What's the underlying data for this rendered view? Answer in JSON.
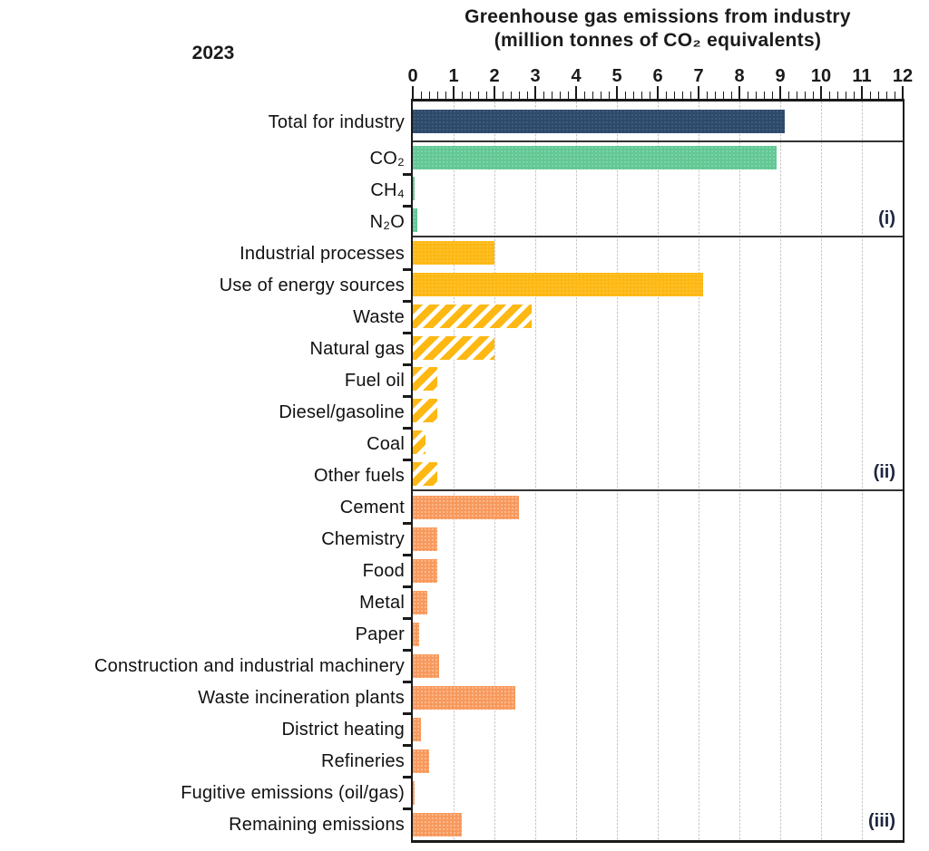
{
  "year_label": "2023",
  "title": {
    "line1": "Greenhouse gas emissions from industry",
    "line2": "(million tonnes of CO₂ equivalents)"
  },
  "chart_data": {
    "type": "bar",
    "orientation": "horizontal",
    "title": "Greenhouse gas emissions from industry (million tonnes of CO₂ equivalents)",
    "xlabel": "million tonnes of CO₂ equivalents",
    "ylabel": "",
    "xlim": [
      0,
      12
    ],
    "axis": {
      "position": "top",
      "major_tick_step": 1,
      "minor_tick_step": 0.2,
      "major_tick_labels": [
        "0",
        "1",
        "2",
        "3",
        "4",
        "5",
        "6",
        "7",
        "8",
        "9",
        "10",
        "11",
        "12"
      ]
    },
    "grid": "vertical dotted at each integer 1-11",
    "legend_position": "none",
    "sections": [
      {
        "id": "total",
        "marker": "",
        "rows": [
          {
            "label": "Total for industry",
            "value": 9.1,
            "style": "navy-solid"
          }
        ]
      },
      {
        "id": "by-gas",
        "marker": "(i)",
        "rows": [
          {
            "label": "CO₂",
            "value": 8.9,
            "style": "green-solid"
          },
          {
            "label": "CH₄",
            "value": 0.05,
            "style": "green-solid"
          },
          {
            "label": "N₂O",
            "value": 0.1,
            "style": "green-solid"
          }
        ]
      },
      {
        "id": "by-source",
        "marker": "(ii)",
        "rows": [
          {
            "label": "Industrial processes",
            "value": 2.0,
            "style": "yellow-solid"
          },
          {
            "label": "Use of energy sources",
            "value": 7.1,
            "style": "yellow-solid"
          },
          {
            "label": "Waste",
            "value": 2.9,
            "style": "yellow-hatched"
          },
          {
            "label": "Natural gas",
            "value": 2.0,
            "style": "yellow-hatched"
          },
          {
            "label": "Fuel oil",
            "value": 0.6,
            "style": "yellow-hatched"
          },
          {
            "label": "Diesel/gasoline",
            "value": 0.6,
            "style": "yellow-hatched"
          },
          {
            "label": "Coal",
            "value": 0.3,
            "style": "yellow-hatched"
          },
          {
            "label": "Other fuels",
            "value": 0.6,
            "style": "yellow-hatched"
          }
        ]
      },
      {
        "id": "by-branch",
        "marker": "(iii)",
        "rows": [
          {
            "label": "Cement",
            "value": 2.6,
            "style": "orange-solid"
          },
          {
            "label": "Chemistry",
            "value": 0.6,
            "style": "orange-solid"
          },
          {
            "label": "Food",
            "value": 0.6,
            "style": "orange-solid"
          },
          {
            "label": "Metal",
            "value": 0.35,
            "style": "orange-solid"
          },
          {
            "label": "Paper",
            "value": 0.15,
            "style": "orange-solid"
          },
          {
            "label": "Construction and industrial machinery",
            "value": 0.65,
            "style": "orange-solid"
          },
          {
            "label": "Waste incineration plants",
            "value": 2.5,
            "style": "orange-solid"
          },
          {
            "label": "District heating",
            "value": 0.2,
            "style": "orange-solid"
          },
          {
            "label": "Refineries",
            "value": 0.4,
            "style": "orange-solid"
          },
          {
            "label": "Fugitive emissions (oil/gas)",
            "value": 0.05,
            "style": "orange-solid"
          },
          {
            "label": "Remaining emissions",
            "value": 1.2,
            "style": "orange-solid"
          }
        ]
      }
    ],
    "colors": {
      "navy": "#2d4a6b",
      "green": "#62c894",
      "yellow": "#fdb813",
      "orange": "#f8995c",
      "gridline": "#c6c6c6",
      "axis": "#1a1a1a",
      "separator": "#333333"
    }
  }
}
